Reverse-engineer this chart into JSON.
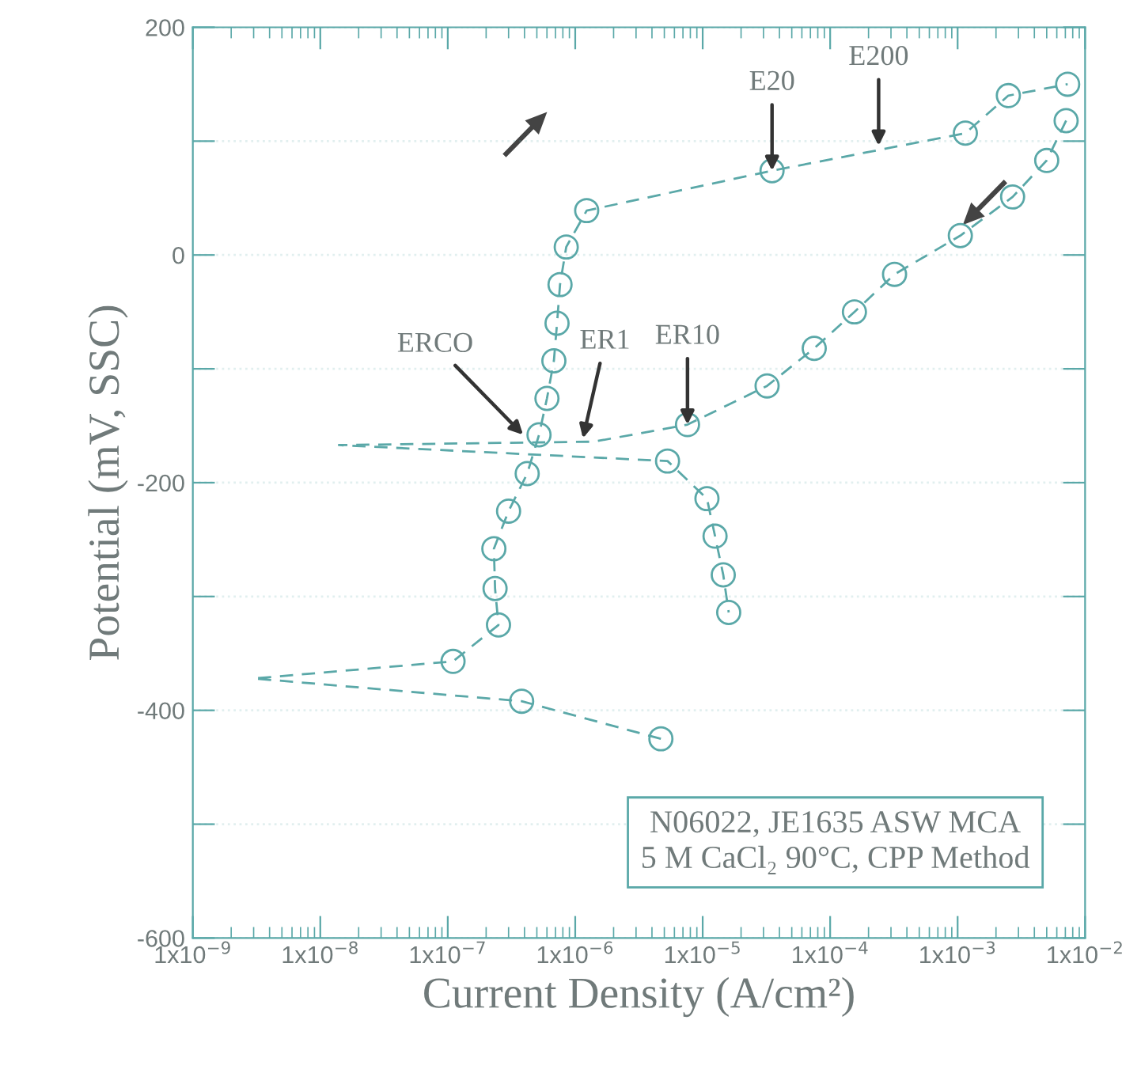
{
  "chart_data": {
    "type": "line",
    "xlabel": "Current Density (A/cm²)",
    "ylabel": "Potential (mV, SSC)",
    "log": "x",
    "grid": "y",
    "legend": false,
    "xlim": [
      1e-09,
      0.01
    ],
    "ylim": [
      -600,
      200
    ],
    "xticks": [
      {
        "value": 1e-09,
        "label": "1x10$^{−9}$"
      },
      {
        "value": 1e-08,
        "label": "1x10$^{−8}$"
      },
      {
        "value": 1e-07,
        "label": "1x10$^{−7}$"
      },
      {
        "value": 1e-06,
        "label": "1x10$^{−6}$"
      },
      {
        "value": 1e-05,
        "label": "1x10$^{−5}$"
      },
      {
        "value": 0.0001,
        "label": "1x10$^{−4}$"
      },
      {
        "value": 0.001,
        "label": "1x10$^{−3}$"
      },
      {
        "value": 0.01,
        "label": "1x10$^{−2}$"
      }
    ],
    "yticks": [
      -600,
      {
        "value": -500,
        "label": null
      },
      -400,
      {
        "value": -300,
        "label": null
      },
      -200,
      {
        "value": -100,
        "label": null
      },
      0,
      {
        "value": 100,
        "label": null
      },
      200
    ],
    "series": [
      {
        "color": "#5aa8a8",
        "line_style": "dashed",
        "marker": "none",
        "x": [
          4.7e-06,
          3.8e-07,
          3e-09,
          1.1e-07,
          2.5e-07,
          2.35e-07,
          2.3e-07,
          3e-07,
          4.2e-07,
          5.2e-07,
          6e-07,
          6.8e-07,
          7.2e-07,
          7.6e-07,
          8.5e-07,
          1.23e-06,
          3.5e-05,
          0.00115,
          0.0025,
          0.0073
        ],
        "values": [
          -425,
          -392,
          -372,
          -357,
          -325,
          -293,
          -258,
          -225,
          -192,
          -158,
          -126,
          -93,
          -60,
          -26,
          7,
          39,
          74,
          107,
          140,
          150
        ]
      },
      {
        "color": "#5aa8a8",
        "line_style": "dashed",
        "marker": "none",
        "x": [
          0.0071,
          0.005,
          0.0027,
          0.00105,
          0.00032,
          0.000155,
          7.5e-05,
          3.2e-05,
          7.6e-06,
          1.4e-06,
          1.4e-08,
          5.3e-06,
          1.08e-05,
          1.25e-05,
          1.45e-05,
          1.6e-05
        ],
        "values": [
          118,
          83,
          51,
          17,
          -17,
          -50,
          -82,
          -115,
          -149,
          -164,
          -167,
          -181,
          -214,
          -247,
          -281,
          -314
        ]
      },
      {
        "type": "scatter",
        "color": "#5aa8a8",
        "marker": "circle",
        "x": [
          4.7e-06,
          3.8e-07,
          1.1e-07,
          2.5e-07,
          2.35e-07,
          2.3e-07,
          3e-07,
          4.2e-07,
          5.2e-07,
          6e-07,
          6.8e-07,
          7.2e-07,
          7.6e-07,
          8.5e-07,
          1.23e-06,
          3.5e-05,
          0.00115,
          0.0025,
          0.0073,
          0.0071,
          0.005,
          0.0027,
          0.00105,
          0.00032,
          0.000155,
          7.5e-05,
          3.2e-05,
          7.6e-06,
          5.3e-06,
          1.08e-05,
          1.25e-05,
          1.45e-05,
          1.6e-05
        ],
        "values": [
          -425,
          -392,
          -357,
          -325,
          -293,
          -258,
          -225,
          -192,
          -158,
          -126,
          -93,
          -60,
          -26,
          7,
          39,
          74,
          107,
          140,
          150,
          118,
          83,
          51,
          17,
          -17,
          -50,
          -82,
          -115,
          -149,
          -181,
          -214,
          -247,
          -281,
          -314
        ]
      }
    ],
    "annotations": [
      {
        "text": "E20",
        "x": 3.5e-05,
        "y": 74
      },
      {
        "text": "E200",
        "x": 0.00024,
        "y": 96
      },
      {
        "text": "ER10",
        "x": 7.6e-06,
        "y": -149
      },
      {
        "text": "ER1",
        "x": 1.15e-06,
        "y": -161
      },
      {
        "text": "ERCO",
        "x": 3.9e-07,
        "y": -158
      },
      "N06022, JE1635 ASW MCA\n5 M CaCl₂ 90°C, CPP Method"
    ]
  }
}
